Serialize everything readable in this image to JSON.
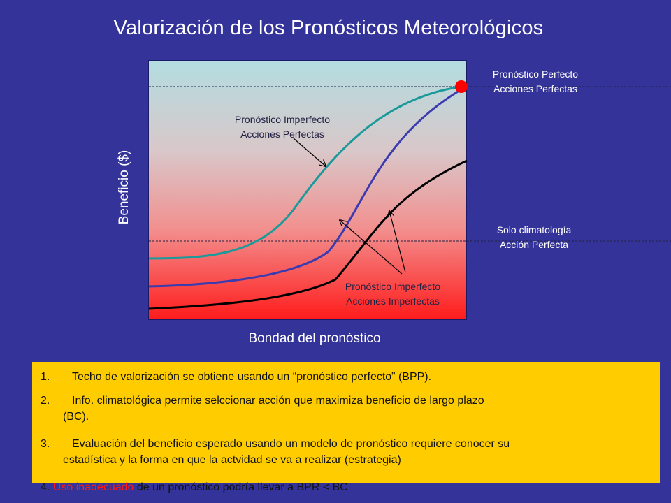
{
  "title": "Valorización de los Pronósticos Meteorológicos",
  "axes": {
    "ylabel": "Beneficio ($)",
    "xlabel": "Bondad del pronóstico"
  },
  "labels": {
    "perfect_line1": "Pronóstico Perfecto",
    "perfect_line2": "Acciones Perfectas",
    "climatology_line1": "Solo climatología",
    "climatology_line2": "Acción Perfecta",
    "imperfect_perfect_line1": "Pronóstico Imperfecto",
    "imperfect_perfect_line2": "Acciones Perfectas",
    "imperfect_imperfect_line1": "Pronóstico Imperfecto",
    "imperfect_imperfect_line2": "Acciones Imperfectas"
  },
  "colors": {
    "background": "#333399",
    "teal_curve": "#1a9a9a",
    "blue_curve": "#3b3bb0",
    "black_curve": "#000000",
    "perfect_point": "#ff0000",
    "notes_box": "#ffcc00",
    "highlight": "#ff1a1a"
  },
  "notes": [
    {
      "num": "1.",
      "text": "Techo de valorización se obtiene usando un “pronóstico perfecto” (BPP).",
      "cont": ""
    },
    {
      "num": "2.",
      "text": "Info. climatológica permite selccionar acción que maximiza beneficio de largo plazo",
      "cont": "(BC)."
    },
    {
      "num": "3.",
      "text": "Evaluación del beneficio esperado usando un modelo de pronóstico requiere conocer su",
      "cont": "estadística y la forma en que la actvidad se va a realizar (estrategia)"
    }
  ],
  "note4": {
    "prefix": "4. ",
    "highlight": "Uso inadecuado",
    "suffix": " de un pronóstico podría llevar a BPR < BC"
  }
}
